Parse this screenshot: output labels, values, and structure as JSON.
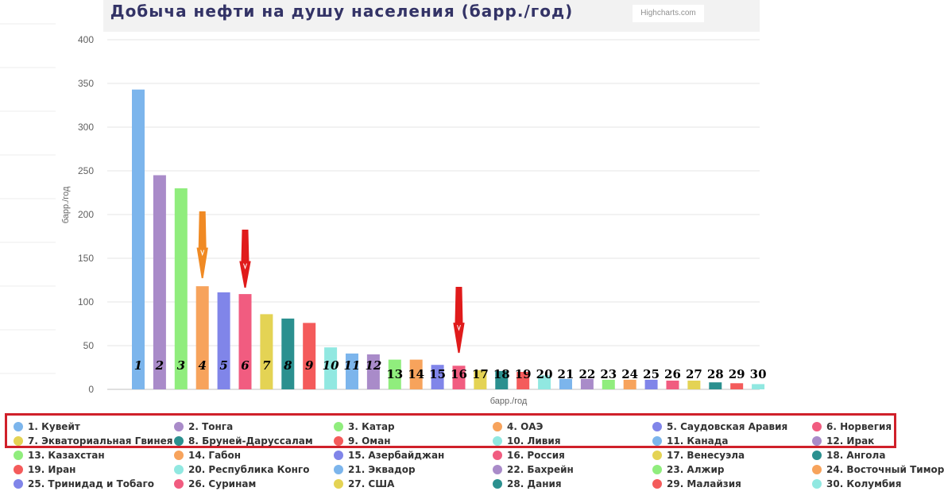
{
  "header": {
    "title": "Добыча нефти на душу населения (барр./год)",
    "credits": "Highcharts.com"
  },
  "colors": {
    "accent": "#333366",
    "highlight_frame": "#d0202a",
    "arrow_orange": "#f08a24",
    "arrow_red": "#e01b1b"
  },
  "chart_data": {
    "type": "bar",
    "title": "Добыча нефти на душу населения (барр./год)",
    "xlabel": "барр./год",
    "ylabel": "барр./год",
    "ylim": [
      0,
      400
    ],
    "yticks": [
      0,
      50,
      100,
      150,
      200,
      250,
      300,
      350,
      400
    ],
    "grid": true,
    "legend": "bottom",
    "categories": [
      "1",
      "2",
      "3",
      "4",
      "5",
      "6",
      "7",
      "8",
      "9",
      "10",
      "11",
      "12",
      "13",
      "14",
      "15",
      "16",
      "17",
      "18",
      "19",
      "20",
      "21",
      "22",
      "23",
      "24",
      "25",
      "26",
      "27",
      "28",
      "29",
      "30"
    ],
    "series_names": [
      "1. Кувейт",
      "2. Тонга",
      "3. Катар",
      "4. ОАЭ",
      "5. Саудовская Аравия",
      "6. Норвегия",
      "7. Экваториальная Гвинея",
      "8. Бруней-Даруссалам",
      "9. Оман",
      "10. Ливия",
      "11. Канада",
      "12. Ирак",
      "13. Казахстан",
      "14. Габон",
      "15. Азербайджан",
      "16. Россия",
      "17. Венесуэла",
      "18. Ангола",
      "19. Иран",
      "20. Республика Конго",
      "21. Эквадор",
      "22. Бахрейн",
      "23. Алжир",
      "24. Восточный Тимор",
      "25. Тринидад и Тобаго",
      "26. Суринам",
      "27. США",
      "28. Дания",
      "29. Малайзия",
      "30. Колумбия"
    ],
    "values": [
      343,
      245,
      230,
      118,
      111,
      109,
      86,
      81,
      76,
      48,
      41,
      40,
      34,
      34,
      28,
      27,
      22,
      21,
      20,
      16,
      12,
      12,
      11,
      11,
      11,
      10,
      10,
      8,
      7,
      6
    ],
    "colors": [
      "#7cb5ec",
      "#a98bc9",
      "#90ed7d",
      "#f7a35c",
      "#8085e9",
      "#f15c80",
      "#e4d354",
      "#2b908f",
      "#f45b5b",
      "#91e8e1",
      "#7cb5ec",
      "#a98bc9",
      "#90ed7d",
      "#f7a35c",
      "#8085e9",
      "#f15c80",
      "#e4d354",
      "#2b908f",
      "#f45b5b",
      "#91e8e1",
      "#7cb5ec",
      "#a98bc9",
      "#90ed7d",
      "#f7a35c",
      "#8085e9",
      "#f15c80",
      "#e4d354",
      "#2b908f",
      "#f45b5b",
      "#91e8e1"
    ],
    "annotations": [
      {
        "type": "arrow",
        "target": "4",
        "color": "#f08a24"
      },
      {
        "type": "arrow",
        "target": "6",
        "color": "#e01b1b"
      },
      {
        "type": "arrow",
        "target": "16",
        "color": "#e01b1b"
      }
    ]
  }
}
